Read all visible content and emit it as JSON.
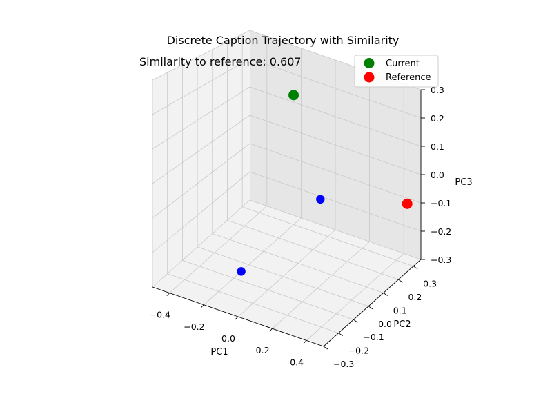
{
  "chart_data": {
    "type": "scatter",
    "projection": "3d",
    "title": "Discrete Caption Trajectory with Similarity",
    "annotation": "Similarity to reference: 0.607",
    "xlabel": "PC1",
    "ylabel": "PC2",
    "zlabel": "PC3",
    "xlim": [
      -0.5,
      0.5
    ],
    "ylim": [
      -0.3,
      0.35
    ],
    "zlim": [
      -0.3,
      0.3
    ],
    "x_ticks": [
      -0.4,
      -0.2,
      0.0,
      0.2,
      0.4
    ],
    "x_tick_labels": [
      "−0.4",
      "−0.2",
      "0.0",
      "0.2",
      "0.4"
    ],
    "y_ticks": [
      -0.3,
      -0.2,
      -0.1,
      0.0,
      0.1,
      0.2,
      0.3
    ],
    "y_tick_labels": [
      "−0.3",
      "−0.2",
      "−0.1",
      "0.0",
      "0.1",
      "0.2",
      "0.3"
    ],
    "z_ticks": [
      -0.3,
      -0.2,
      -0.1,
      0.0,
      0.1,
      0.2,
      0.3
    ],
    "z_tick_labels": [
      "−0.3",
      "−0.2",
      "−0.1",
      "0.0",
      "0.1",
      "0.2",
      "0.3"
    ],
    "grid": true,
    "legend_position": "top-right",
    "series": [
      {
        "role": "trajectory",
        "color": "#0000ff",
        "points": [
          {
            "x": -0.2,
            "y": -0.05,
            "z": -0.3
          },
          {
            "x": 0.0,
            "y": 0.25,
            "z": -0.15
          }
        ]
      },
      {
        "name": "Current",
        "color": "#008000",
        "points": [
          {
            "x": -0.2,
            "y": 0.3,
            "z": 0.15
          }
        ]
      },
      {
        "name": "Reference",
        "color": "#ff0000",
        "points": [
          {
            "x": 0.42,
            "y": 0.35,
            "z": -0.12
          }
        ]
      }
    ]
  }
}
